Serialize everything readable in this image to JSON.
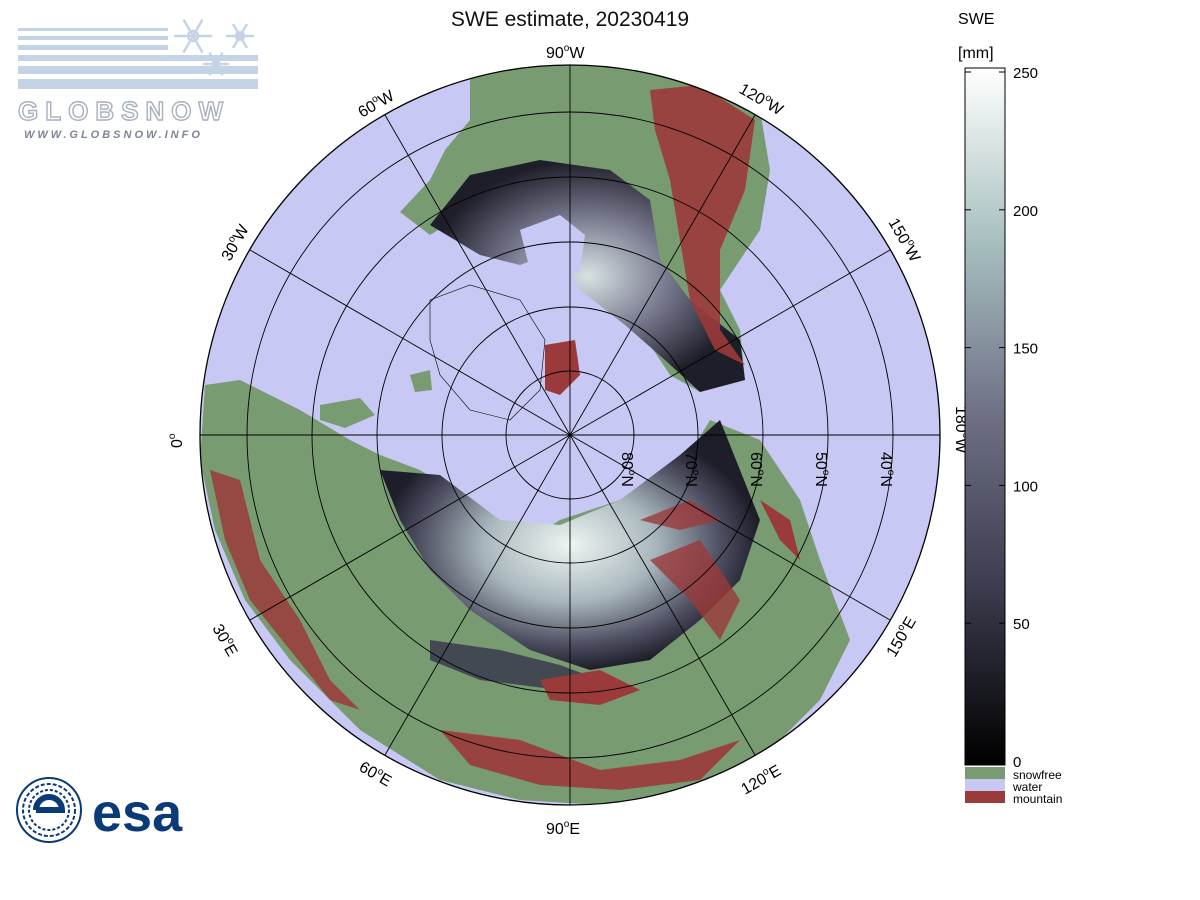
{
  "title": "SWE estimate, 20230419",
  "logos": {
    "globsnow_text": "GLOBSNOW",
    "globsnow_url": "WWW.GLOBSNOW.INFO",
    "esa_text": "esa"
  },
  "colorbar": {
    "title_line1": "SWE",
    "title_line2": "[mm]",
    "ticks": [
      "250",
      "200",
      "150",
      "100",
      "50",
      "0"
    ],
    "tick_values": [
      250,
      200,
      150,
      100,
      50,
      0
    ],
    "range": [
      0,
      250
    ],
    "legend": [
      {
        "label": "snowfree",
        "color": "#789b72"
      },
      {
        "label": "water",
        "color": "#c8c8f5"
      },
      {
        "label": "mountain",
        "color": "#9b3a3a"
      }
    ]
  },
  "map": {
    "projection": "polar stereographic (north)",
    "colors": {
      "ocean": "#c8c8f5",
      "land": "#789b72",
      "mountain": "#9b3a3a",
      "snow_low": "#1e1e2a",
      "snow_mid": "#6e6f85",
      "snow_high": "#eef5f2"
    },
    "longitude_labels": [
      {
        "id": "lon-90w",
        "text": "90",
        "sup": "o",
        "hemi": "W"
      },
      {
        "id": "lon-60w",
        "text": "60",
        "sup": "o",
        "hemi": "W"
      },
      {
        "id": "lon-120w",
        "text": "120",
        "sup": "o",
        "hemi": "W"
      },
      {
        "id": "lon-30w",
        "text": "30",
        "sup": "o",
        "hemi": "W"
      },
      {
        "id": "lon-150w",
        "text": "150",
        "sup": "o",
        "hemi": "W"
      },
      {
        "id": "lon-0",
        "text": "0",
        "sup": "o",
        "hemi": ""
      },
      {
        "id": "lon-180w",
        "text": "180",
        "sup": "o",
        "hemi": "W"
      },
      {
        "id": "lon-30e",
        "text": "30",
        "sup": "o",
        "hemi": "E"
      },
      {
        "id": "lon-150e",
        "text": "150",
        "sup": "o",
        "hemi": "E"
      },
      {
        "id": "lon-60e",
        "text": "60",
        "sup": "o",
        "hemi": "E"
      },
      {
        "id": "lon-120e",
        "text": "120",
        "sup": "o",
        "hemi": "E"
      },
      {
        "id": "lon-90e",
        "text": "90",
        "sup": "o",
        "hemi": "E"
      }
    ],
    "latitude_labels": [
      {
        "id": "lat-80n",
        "text": "80",
        "sup": "o",
        "hemi": "N"
      },
      {
        "id": "lat-70n",
        "text": "70",
        "sup": "o",
        "hemi": "N"
      },
      {
        "id": "lat-60n",
        "text": "60",
        "sup": "o",
        "hemi": "N"
      },
      {
        "id": "lat-50n",
        "text": "50",
        "sup": "o",
        "hemi": "N"
      },
      {
        "id": "lat-40n",
        "text": "40",
        "sup": "o",
        "hemi": "N"
      }
    ]
  }
}
